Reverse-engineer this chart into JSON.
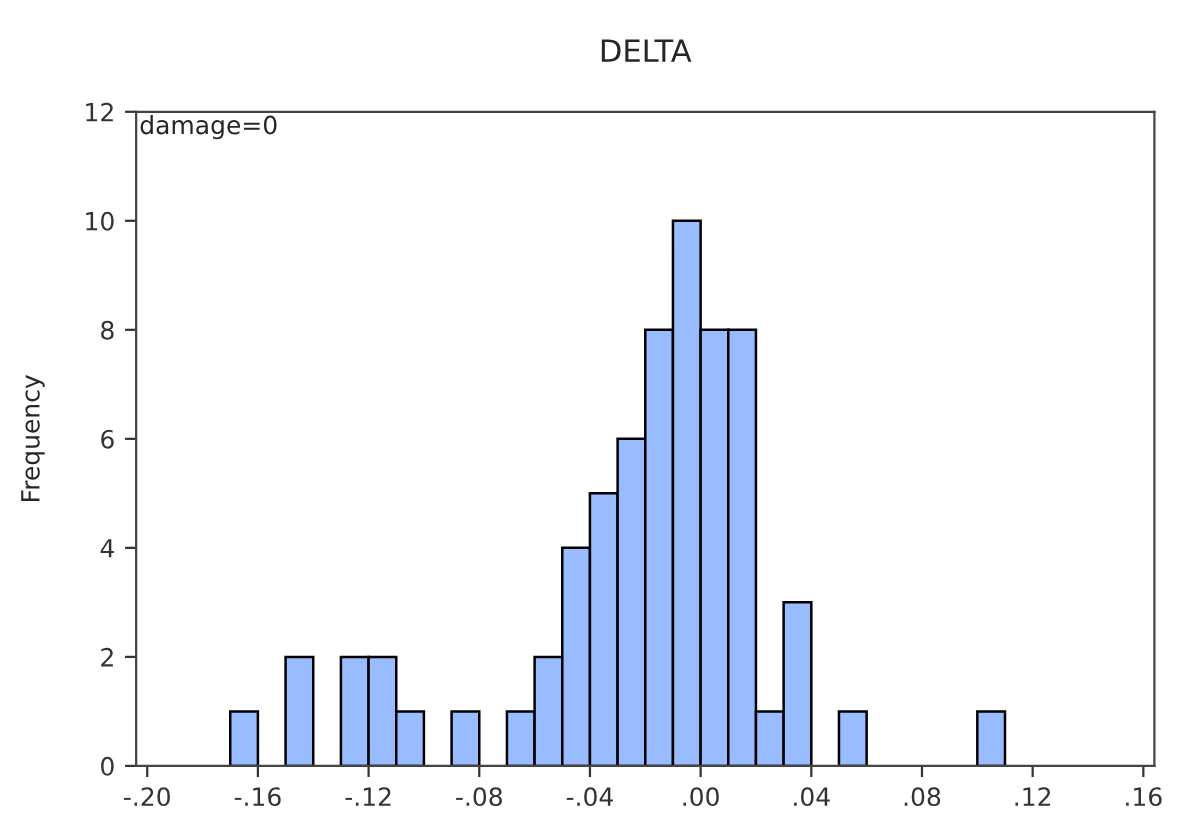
{
  "chart_data": {
    "type": "histogram",
    "title": "DELTA",
    "ylabel": "Frequency",
    "annotations": [
      "damage=0"
    ],
    "bins": [
      -0.17,
      -0.16,
      -0.15,
      -0.14,
      -0.13,
      -0.12,
      -0.11,
      -0.1,
      -0.09,
      -0.08,
      -0.07,
      -0.06,
      -0.05,
      -0.04,
      -0.03,
      -0.02,
      -0.01,
      0.0,
      0.01,
      0.02,
      0.03,
      0.04,
      0.05,
      0.06,
      0.07,
      0.08,
      0.09,
      0.1,
      0.11
    ],
    "values": [
      1,
      0,
      2,
      0,
      2,
      2,
      1,
      0,
      1,
      0,
      1,
      2,
      4,
      5,
      6,
      8,
      10,
      8,
      8,
      1,
      3,
      0,
      1,
      0,
      0,
      0,
      0,
      1
    ],
    "color": "#99bbff",
    "xlim": [
      -0.204,
      0.164
    ],
    "xticks": [
      {
        "value": -0.2,
        "label": "-.20"
      },
      {
        "value": -0.16,
        "label": "-.16"
      },
      {
        "value": -0.12,
        "label": "-.12"
      },
      {
        "value": -0.08,
        "label": "-.08"
      },
      {
        "value": -0.04,
        "label": "-.04"
      },
      {
        "value": 0.0,
        "label": ".00"
      },
      {
        "value": 0.04,
        "label": ".04"
      },
      {
        "value": 0.08,
        "label": ".08"
      },
      {
        "value": 0.12,
        "label": ".12"
      },
      {
        "value": 0.16,
        "label": ".16"
      }
    ],
    "ylim": [
      0,
      12
    ],
    "yticks": [
      0,
      2,
      4,
      6,
      8,
      10,
      12
    ],
    "grid": false
  }
}
